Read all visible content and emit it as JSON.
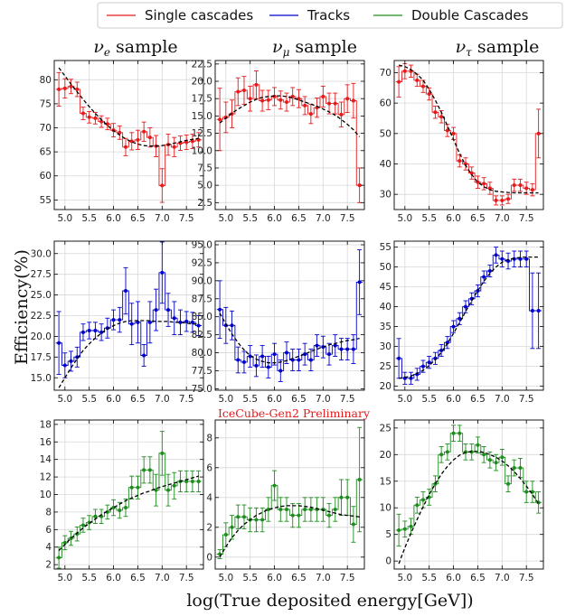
{
  "legend": [
    {
      "label": "Single cascades",
      "color": "#e41a1c"
    },
    {
      "label": "Tracks",
      "color": "#0000cc"
    },
    {
      "label": "Double Cascades",
      "color": "#1e8c1e"
    }
  ],
  "column_titles": [
    {
      "prefix": "ν",
      "sub": "e",
      "suffix": " sample"
    },
    {
      "prefix": "ν",
      "sub": "μ",
      "suffix": " sample"
    },
    {
      "prefix": "ν",
      "sub": "τ",
      "suffix": " sample"
    }
  ],
  "ylabel": "Efficiency(%)",
  "xlabel": "log(True deposited energy[GeV])",
  "annotation": "IceCube-Gen2 Preliminary",
  "chart_data": [
    {
      "type": "line",
      "row": 0,
      "col": 0,
      "series_name": "Single cascades",
      "color": "#e41a1c",
      "x": [
        4.875,
        5.0,
        5.125,
        5.25,
        5.375,
        5.5,
        5.625,
        5.75,
        5.875,
        6.0,
        6.125,
        6.25,
        6.375,
        6.5,
        6.625,
        6.75,
        6.875,
        7.0,
        7.125,
        7.25,
        7.375,
        7.5,
        7.625,
        7.75
      ],
      "y": [
        78.0,
        78.2,
        78.6,
        78.0,
        73.0,
        72.2,
        72.0,
        71.3,
        70.8,
        69.5,
        69.0,
        66.0,
        67.2,
        67.5,
        69.2,
        68.0,
        66.2,
        58.0,
        66.5,
        66.0,
        66.8,
        67.0,
        67.2,
        67.5
      ],
      "err": [
        3.5,
        2.0,
        1.5,
        1.5,
        1.3,
        1.2,
        1.2,
        1.2,
        1.2,
        1.4,
        1.4,
        1.8,
        1.8,
        2.0,
        2.0,
        2.0,
        2.2,
        3.5,
        2.2,
        2.0,
        1.5,
        1.5,
        1.5,
        1.5
      ],
      "fit": [
        82.5,
        80.8,
        79.1,
        77.5,
        75.9,
        74.4,
        73.0,
        71.7,
        70.5,
        69.4,
        68.5,
        67.7,
        67.1,
        66.6,
        66.3,
        66.2,
        66.2,
        66.3,
        66.5,
        66.8,
        67.1,
        67.4,
        67.6,
        67.8
      ],
      "xticks": [
        "5.0",
        "5.5",
        "6.0",
        "6.5",
        "7.0",
        "7.5"
      ],
      "yticks": [
        "55",
        "60",
        "65",
        "70",
        "75",
        "80"
      ],
      "ylim": [
        53,
        84
      ]
    },
    {
      "type": "line",
      "row": 0,
      "col": 1,
      "series_name": "Single cascades",
      "color": "#e41a1c",
      "x": [
        4.875,
        5.0,
        5.125,
        5.25,
        5.375,
        5.5,
        5.625,
        5.75,
        5.875,
        6.0,
        6.125,
        6.25,
        6.375,
        6.5,
        6.625,
        6.75,
        6.875,
        7.0,
        7.125,
        7.25,
        7.375,
        7.5,
        7.625,
        7.75
      ],
      "y": [
        14.5,
        14.8,
        15.3,
        18.5,
        18.7,
        17.5,
        19.5,
        17.2,
        17.3,
        17.8,
        17.3,
        17.0,
        17.8,
        17.5,
        16.5,
        15.3,
        16.2,
        17.8,
        16.8,
        16.8,
        15.2,
        17.5,
        17.2,
        5.0
      ],
      "err": [
        4.5,
        2.2,
        2.0,
        2.0,
        2.0,
        1.8,
        2.0,
        1.5,
        1.4,
        1.3,
        1.3,
        1.3,
        1.3,
        1.3,
        1.3,
        1.4,
        1.4,
        1.5,
        1.5,
        1.5,
        1.8,
        2.0,
        2.5,
        2.5
      ],
      "fit": [
        14.0,
        14.7,
        15.4,
        16.0,
        16.5,
        17.0,
        17.4,
        17.7,
        17.8,
        17.9,
        17.9,
        17.8,
        17.6,
        17.3,
        17.0,
        16.7,
        16.4,
        16.0,
        15.6,
        15.1,
        14.5,
        13.8,
        13.0,
        12.0
      ],
      "xticks": [
        "5.0",
        "5.5",
        "6.0",
        "6.5",
        "7.0",
        "7.5"
      ],
      "yticks": [
        "2.5",
        "5.0",
        "7.5",
        "10.0",
        "12.5",
        "15.0",
        "17.5",
        "20.0",
        "22.5"
      ],
      "ylim": [
        1.5,
        23
      ]
    },
    {
      "type": "line",
      "row": 0,
      "col": 2,
      "series_name": "Single cascades",
      "color": "#e41a1c",
      "x": [
        4.875,
        5.0,
        5.125,
        5.25,
        5.375,
        5.5,
        5.625,
        5.75,
        5.875,
        6.0,
        6.125,
        6.25,
        6.375,
        6.5,
        6.625,
        6.75,
        6.875,
        7.0,
        7.125,
        7.25,
        7.375,
        7.5,
        7.625,
        7.75
      ],
      "y": [
        67.0,
        70.5,
        70.5,
        67.5,
        65.5,
        63.0,
        57.0,
        55.5,
        51.0,
        50.0,
        41.0,
        40.0,
        37.0,
        34.0,
        33.5,
        32.0,
        28.0,
        28.0,
        28.5,
        33.0,
        33.0,
        32.0,
        31.5,
        50.0
      ],
      "err": [
        5.0,
        2.5,
        2.0,
        2.0,
        2.0,
        2.0,
        2.0,
        2.0,
        2.0,
        2.0,
        2.0,
        2.0,
        2.0,
        2.0,
        2.0,
        2.0,
        1.5,
        1.5,
        1.5,
        2.0,
        2.0,
        2.0,
        2.0,
        8.0
      ],
      "fit": [
        72.5,
        72.0,
        71.0,
        69.5,
        67.5,
        64.5,
        61.0,
        57.0,
        52.5,
        48.0,
        43.5,
        39.5,
        36.5,
        34.0,
        32.5,
        31.5,
        31.0,
        30.8,
        30.6,
        30.5,
        30.5,
        30.5,
        30.5,
        30.5
      ],
      "xticks": [
        "5.0",
        "5.5",
        "6.0",
        "6.5",
        "7.0",
        "7.5"
      ],
      "yticks": [
        "30",
        "40",
        "50",
        "60",
        "70"
      ],
      "ylim": [
        25,
        74
      ]
    },
    {
      "type": "line",
      "row": 1,
      "col": 0,
      "series_name": "Tracks",
      "color": "#0000cc",
      "x": [
        4.875,
        5.0,
        5.125,
        5.25,
        5.375,
        5.5,
        5.625,
        5.75,
        5.875,
        6.0,
        6.125,
        6.25,
        6.375,
        6.5,
        6.625,
        6.75,
        6.875,
        7.0,
        7.125,
        7.25,
        7.375,
        7.5,
        7.625,
        7.75
      ],
      "y": [
        19.2,
        16.5,
        17.0,
        17.5,
        20.5,
        20.7,
        20.7,
        20.5,
        21.0,
        22.0,
        22.0,
        25.5,
        21.5,
        21.7,
        17.7,
        21.7,
        23.2,
        27.7,
        23.2,
        22.2,
        21.7,
        21.8,
        21.7,
        21.3
      ],
      "err": [
        3.8,
        1.5,
        1.2,
        1.2,
        1.0,
        1.0,
        1.0,
        1.0,
        1.2,
        1.2,
        1.5,
        2.8,
        2.5,
        2.5,
        1.3,
        2.5,
        2.5,
        3.7,
        2.0,
        2.0,
        1.5,
        1.2,
        1.2,
        1.2
      ],
      "fit": [
        13.8,
        15.0,
        16.2,
        17.3,
        18.3,
        19.1,
        19.8,
        20.4,
        20.9,
        21.3,
        21.6,
        21.8,
        21.9,
        21.9,
        21.9,
        21.9,
        21.8,
        21.8,
        21.8,
        21.7,
        21.7,
        21.6,
        21.5,
        21.5
      ],
      "xticks": [
        "5.0",
        "5.5",
        "6.0",
        "6.5",
        "7.0",
        "7.5"
      ],
      "yticks": [
        "15.0",
        "17.5",
        "20.0",
        "22.5",
        "25.0",
        "27.5",
        "30.0"
      ],
      "ylim": [
        13.5,
        31.5
      ]
    },
    {
      "type": "line",
      "row": 1,
      "col": 1,
      "series_name": "Tracks",
      "color": "#0000cc",
      "x": [
        4.875,
        5.0,
        5.125,
        5.25,
        5.375,
        5.5,
        5.625,
        5.75,
        5.875,
        6.0,
        6.125,
        6.25,
        6.375,
        6.5,
        6.625,
        6.75,
        6.875,
        7.0,
        7.125,
        7.25,
        7.375,
        7.5,
        7.625,
        7.75
      ],
      "y": [
        86.0,
        83.8,
        83.8,
        79.0,
        78.7,
        79.5,
        78.2,
        79.5,
        78.0,
        79.8,
        77.5,
        80.0,
        79.0,
        79.0,
        79.8,
        79.0,
        81.0,
        80.8,
        79.8,
        81.0,
        80.5,
        80.5,
        80.5,
        89.8
      ],
      "err": [
        4.0,
        2.5,
        2.0,
        1.8,
        1.5,
        1.5,
        1.5,
        1.5,
        1.5,
        1.5,
        1.5,
        1.5,
        1.5,
        1.5,
        1.5,
        1.5,
        1.5,
        1.5,
        1.5,
        1.5,
        1.5,
        1.5,
        2.0,
        4.5
      ],
      "fit": [
        85.5,
        84.0,
        82.6,
        81.4,
        80.4,
        79.6,
        79.1,
        78.8,
        78.6,
        78.6,
        78.7,
        78.9,
        79.2,
        79.5,
        79.8,
        80.2,
        80.5,
        80.8,
        81.1,
        81.3,
        81.5,
        81.7,
        81.8,
        82.0
      ],
      "xticks": [
        "5.0",
        "5.5",
        "6.0",
        "6.5",
        "7.0",
        "7.5"
      ],
      "yticks": [
        "75.0",
        "77.5",
        "80.0",
        "82.5",
        "85.0",
        "87.5",
        "90.0",
        "92.5",
        "95.0"
      ],
      "ylim": [
        74.8,
        95.5
      ]
    },
    {
      "type": "line",
      "row": 1,
      "col": 2,
      "series_name": "Tracks",
      "color": "#0000cc",
      "x": [
        4.875,
        5.0,
        5.125,
        5.25,
        5.375,
        5.5,
        5.625,
        5.75,
        5.875,
        6.0,
        6.125,
        6.25,
        6.375,
        6.5,
        6.625,
        6.75,
        6.875,
        7.0,
        7.125,
        7.25,
        7.375,
        7.5,
        7.625,
        7.75
      ],
      "y": [
        27.0,
        22.0,
        22.0,
        23.0,
        25.0,
        26.0,
        27.0,
        29.0,
        31.0,
        35.0,
        37.0,
        40.0,
        42.0,
        44.0,
        47.5,
        49.0,
        53.0,
        52.0,
        51.5,
        52.0,
        52.0,
        52.0,
        39.0,
        39.0
      ],
      "err": [
        5.0,
        1.5,
        1.5,
        1.5,
        1.5,
        1.5,
        1.5,
        1.5,
        1.5,
        1.5,
        1.5,
        1.5,
        1.5,
        1.5,
        1.5,
        1.5,
        2.0,
        2.0,
        2.0,
        2.0,
        2.0,
        2.0,
        9.5,
        9.5
      ],
      "fit": [
        22.0,
        22.2,
        22.6,
        23.2,
        24.0,
        25.2,
        26.7,
        28.5,
        30.8,
        33.3,
        36.0,
        38.8,
        41.5,
        44.0,
        46.4,
        48.4,
        50.0,
        51.2,
        51.9,
        52.2,
        52.4,
        52.5,
        52.5,
        52.5
      ],
      "xticks": [
        "5.0",
        "5.5",
        "6.0",
        "6.5",
        "7.0",
        "7.5"
      ],
      "yticks": [
        "20",
        "25",
        "30",
        "35",
        "40",
        "45",
        "50",
        "55"
      ],
      "ylim": [
        19,
        56.5
      ]
    },
    {
      "type": "line",
      "row": 2,
      "col": 0,
      "series_name": "Double Cascades",
      "color": "#1e8c1e",
      "x": [
        4.875,
        5.0,
        5.125,
        5.25,
        5.375,
        5.5,
        5.625,
        5.75,
        5.875,
        6.0,
        6.125,
        6.25,
        6.375,
        6.5,
        6.625,
        6.75,
        6.875,
        7.0,
        7.125,
        7.25,
        7.375,
        7.5,
        7.625,
        7.75
      ],
      "y": [
        2.8,
        4.5,
        5.0,
        5.5,
        6.5,
        6.8,
        7.5,
        7.5,
        8.0,
        8.5,
        8.2,
        8.5,
        10.8,
        10.8,
        12.8,
        12.8,
        10.5,
        14.7,
        10.5,
        11.0,
        11.5,
        11.5,
        11.5,
        11.5
      ],
      "err": [
        1.2,
        0.8,
        0.8,
        0.8,
        0.8,
        0.8,
        0.8,
        0.8,
        0.8,
        0.9,
        0.9,
        1.0,
        1.3,
        1.3,
        1.5,
        1.5,
        1.8,
        2.5,
        1.8,
        1.5,
        1.2,
        1.2,
        1.2,
        1.2
      ],
      "fit": [
        3.6,
        4.3,
        5.0,
        5.6,
        6.2,
        6.7,
        7.2,
        7.7,
        8.1,
        8.5,
        8.9,
        9.3,
        9.6,
        9.9,
        10.2,
        10.4,
        10.7,
        10.9,
        11.1,
        11.3,
        11.5,
        11.7,
        11.9,
        12.1
      ],
      "xticks": [
        "5.0",
        "5.5",
        "6.0",
        "6.5",
        "7.0",
        "7.5"
      ],
      "yticks": [
        "2",
        "4",
        "6",
        "8",
        "10",
        "12",
        "14",
        "16",
        "18"
      ],
      "ylim": [
        1.5,
        18.5
      ]
    },
    {
      "type": "line",
      "row": 2,
      "col": 1,
      "series_name": "Double Cascades",
      "color": "#1e8c1e",
      "x": [
        4.875,
        5.0,
        5.125,
        5.25,
        5.375,
        5.5,
        5.625,
        5.75,
        5.875,
        6.0,
        6.125,
        6.25,
        6.375,
        6.5,
        6.625,
        6.75,
        6.875,
        7.0,
        7.125,
        7.25,
        7.375,
        7.5,
        7.625,
        7.75
      ],
      "y": [
        0.2,
        1.5,
        2.0,
        2.7,
        2.7,
        2.5,
        2.5,
        2.5,
        3.2,
        4.8,
        3.2,
        3.2,
        2.8,
        2.8,
        3.2,
        3.2,
        3.2,
        3.2,
        2.8,
        3.2,
        4.0,
        4.0,
        2.2,
        5.2
      ],
      "err": [
        0.3,
        0.8,
        0.8,
        0.8,
        0.8,
        0.8,
        0.8,
        0.8,
        0.8,
        1.0,
        0.8,
        0.8,
        0.8,
        0.8,
        0.8,
        0.8,
        0.8,
        0.8,
        0.8,
        0.8,
        1.2,
        1.2,
        1.2,
        3.5
      ],
      "fit": [
        0.0,
        0.7,
        1.3,
        1.8,
        2.2,
        2.5,
        2.8,
        3.0,
        3.2,
        3.3,
        3.4,
        3.45,
        3.45,
        3.45,
        3.4,
        3.35,
        3.25,
        3.15,
        3.05,
        2.95,
        2.85,
        2.8,
        2.75,
        2.7
      ],
      "xticks": [
        "5.0",
        "5.5",
        "6.0",
        "6.5",
        "7.0",
        "7.5"
      ],
      "yticks": [
        "0",
        "2",
        "4",
        "6",
        "8"
      ],
      "ylim": [
        -0.8,
        9.2
      ]
    },
    {
      "type": "line",
      "row": 2,
      "col": 2,
      "series_name": "Double Cascades",
      "color": "#1e8c1e",
      "x": [
        4.875,
        5.0,
        5.125,
        5.25,
        5.375,
        5.5,
        5.625,
        5.75,
        5.875,
        6.0,
        6.125,
        6.25,
        6.375,
        6.5,
        6.625,
        6.75,
        6.875,
        7.0,
        7.125,
        7.25,
        7.375,
        7.5,
        7.625,
        7.75
      ],
      "y": [
        5.8,
        6.0,
        6.5,
        10.5,
        11.5,
        12.0,
        14.5,
        20.0,
        20.5,
        24.0,
        24.0,
        20.5,
        20.5,
        21.8,
        20.0,
        19.0,
        18.5,
        19.5,
        14.5,
        17.5,
        17.5,
        13.0,
        13.0,
        11.0
      ],
      "err": [
        3.0,
        1.5,
        1.5,
        1.5,
        1.5,
        1.5,
        1.5,
        1.5,
        1.5,
        1.5,
        1.5,
        1.5,
        1.5,
        1.5,
        1.5,
        1.5,
        1.5,
        1.5,
        1.5,
        1.5,
        1.8,
        2.0,
        2.0,
        2.0
      ],
      "fit": [
        -0.5,
        2.5,
        5.2,
        7.8,
        10.2,
        12.5,
        14.5,
        16.3,
        17.8,
        19.0,
        19.9,
        20.4,
        20.6,
        20.6,
        20.4,
        20.0,
        19.5,
        18.8,
        17.9,
        16.8,
        15.5,
        14.1,
        12.5,
        10.8
      ],
      "xticks": [
        "5.0",
        "5.5",
        "6.0",
        "6.5",
        "7.0",
        "7.5"
      ],
      "yticks": [
        "0",
        "5",
        "10",
        "15",
        "20",
        "25"
      ],
      "ylim": [
        -1.5,
        26.5
      ]
    }
  ]
}
